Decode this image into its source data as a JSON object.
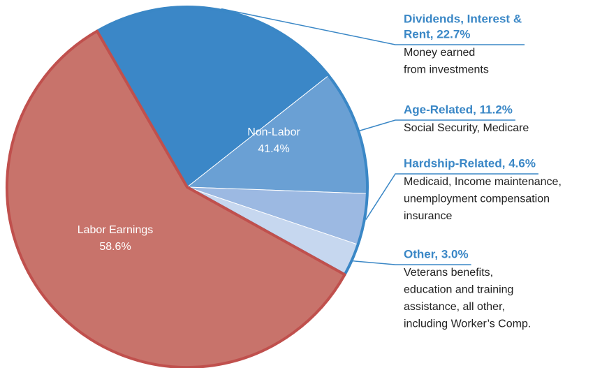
{
  "chart_data": {
    "type": "pie",
    "groups": [
      {
        "name": "Labor Earnings",
        "value": 58.6,
        "value_label": "58.6%",
        "color": "#c8736b"
      },
      {
        "name": "Non-Labor",
        "value": 41.4,
        "value_label": "41.4%",
        "color": "#3a87c6"
      }
    ],
    "slices": [
      {
        "label": [
          "Dividends, Interest &",
          "Rent, 22.7%"
        ],
        "value": 22.7,
        "color": "#3b87c7",
        "description": [
          "Money earned",
          "from investments"
        ]
      },
      {
        "label": [
          "Age-Related, 11.2%"
        ],
        "value": 11.2,
        "color": "#6aa0d4",
        "description": [
          "Social Security, Medicare"
        ]
      },
      {
        "label": [
          "Hardship-Related, 4.6%"
        ],
        "value": 4.6,
        "color": "#9cb9e2",
        "description": [
          "Medicaid, Income maintenance,",
          "unemployment compensation",
          "insurance"
        ]
      },
      {
        "label": [
          "Other, 3.0%"
        ],
        "value": 3.0,
        "color": "#c6d7ef",
        "description": [
          "Veterans benefits,",
          "education and training",
          "assistance, all other,",
          "including Worker’s Comp."
        ]
      }
    ]
  }
}
